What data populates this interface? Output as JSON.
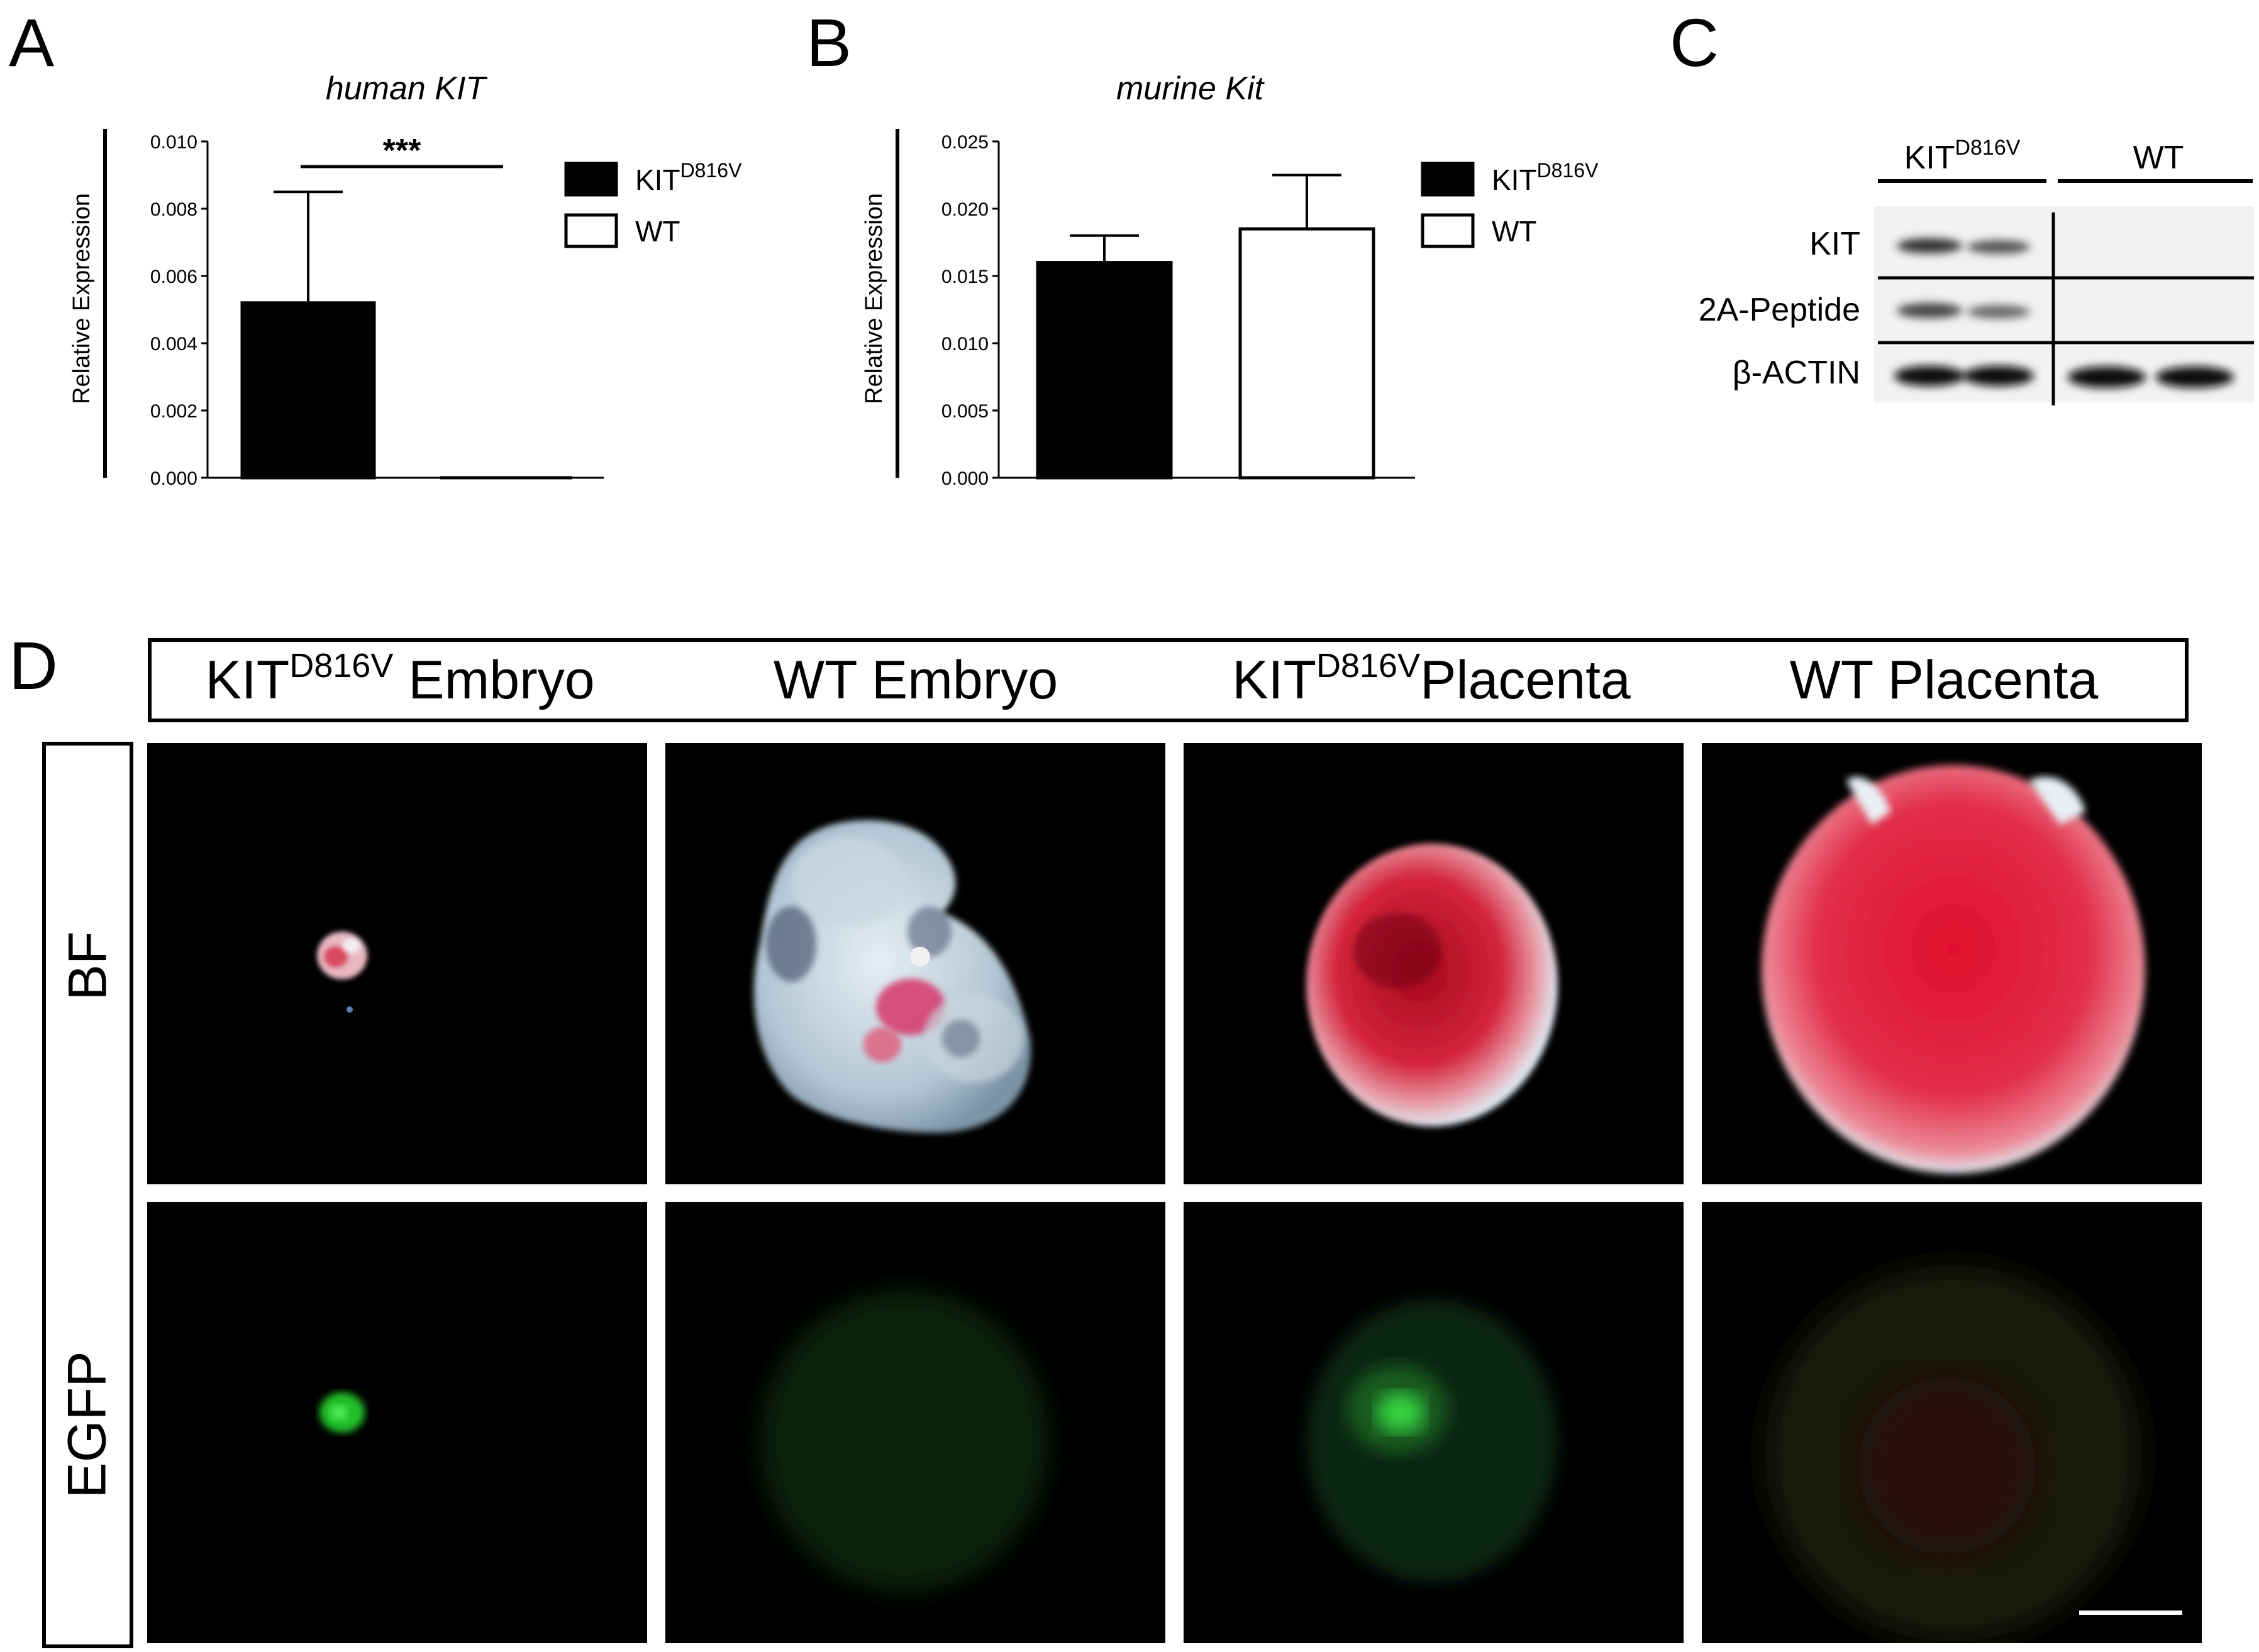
{
  "panels": {
    "a": {
      "letter": "A"
    },
    "b": {
      "letter": "B"
    },
    "c": {
      "letter": "C"
    },
    "d": {
      "letter": "D"
    }
  },
  "chart_data": [
    {
      "panel": "A",
      "type": "bar",
      "title": "human KIT",
      "ylabel": "Relative Expression",
      "xlabel": "",
      "categories": [
        "KITD816V",
        "WT"
      ],
      "values": [
        0.0052,
        0.0
      ],
      "errors": [
        0.0033,
        0.0
      ],
      "ylim": [
        0,
        0.01
      ],
      "yticks": [
        "0.000",
        "0.002",
        "0.004",
        "0.006",
        "0.008",
        "0.010"
      ],
      "annotation": "***",
      "legend": [
        {
          "name": "KIT",
          "sup": "D816V",
          "fill": "#000000"
        },
        {
          "name": "WT",
          "sup": "",
          "fill": "#ffffff"
        }
      ]
    },
    {
      "panel": "B",
      "type": "bar",
      "title": "murine Kit",
      "ylabel": "Relative Expression",
      "xlabel": "",
      "categories": [
        "KITD816V",
        "WT"
      ],
      "values": [
        0.016,
        0.0185
      ],
      "errors": [
        0.002,
        0.004
      ],
      "ylim": [
        0,
        0.025
      ],
      "yticks": [
        "0.000",
        "0.005",
        "0.010",
        "0.015",
        "0.020",
        "0.025"
      ],
      "legend": [
        {
          "name": "KIT",
          "sup": "D816V",
          "fill": "#000000"
        },
        {
          "name": "WT",
          "sup": "",
          "fill": "#ffffff"
        }
      ]
    }
  ],
  "blot": {
    "group_labels": [
      {
        "name": "KIT",
        "sup": "D816V"
      },
      {
        "name": "WT",
        "sup": ""
      }
    ],
    "row_labels": [
      "KIT",
      "2A-Peptide",
      "β-ACTIN"
    ]
  },
  "panel_d": {
    "column_headers": [
      {
        "name": "KIT",
        "sup": "D816V",
        "suffix": " Embryo"
      },
      {
        "name": "WT Embryo",
        "sup": "",
        "suffix": ""
      },
      {
        "name": "KIT",
        "sup": "D816V",
        "suffix": "Placenta"
      },
      {
        "name": "WT Placenta",
        "sup": "",
        "suffix": ""
      }
    ],
    "row_labels": [
      "BF",
      "EGFP"
    ]
  },
  "colors": {
    "bar_kit": "#000000",
    "bar_wt": "#ffffff",
    "tissue_red": "#c8102e",
    "egfp_green": "#22c02a"
  }
}
